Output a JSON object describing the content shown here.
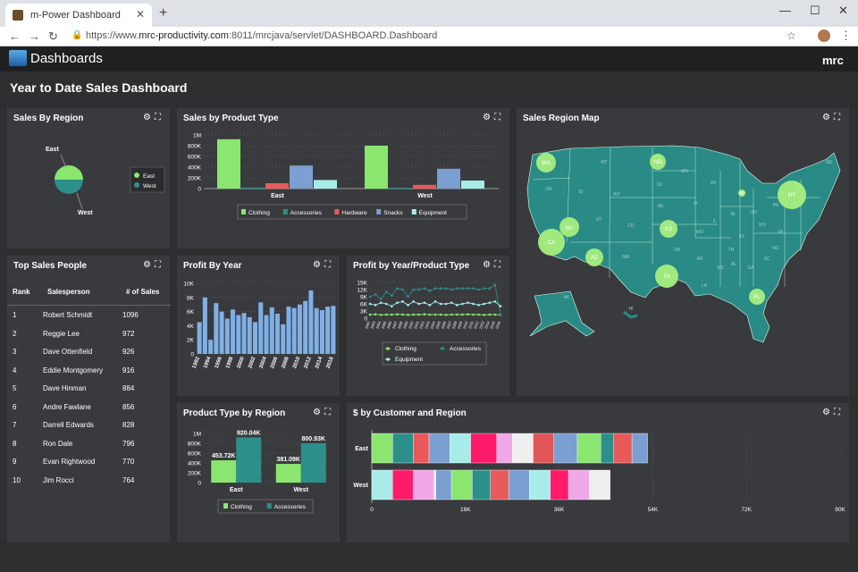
{
  "browser": {
    "tab_title": "m-Power Dashboard",
    "url_prefix": "https://www.",
    "url_host": "mrc-productivity.com",
    "url_path": ":8011/mrcjava/servlet/DASHBOARD.Dashboard"
  },
  "app": {
    "title": "Dashboards",
    "brand": "mrc",
    "page_title": "Year to Date Sales Dashboard"
  },
  "panels": {
    "region": "Sales By Region",
    "product_type": "Sales by Product Type",
    "map": "Sales Region Map",
    "top_people": "Top Sales People",
    "profit_year": "Profit By Year",
    "profit_year_product": "Profit by Year/Product Type",
    "type_region": "Product Type by Region",
    "customer_region": "$ by Customer and Region"
  },
  "top_people": {
    "headers": {
      "rank": "Rank",
      "person": "Salesperson",
      "sales": "# of Sales"
    },
    "rows": [
      {
        "rank": "1",
        "name": "Robert Schmidt",
        "sales": "1096"
      },
      {
        "rank": "2",
        "name": "Reggie Lee",
        "sales": "972"
      },
      {
        "rank": "3",
        "name": "Dave Ottenfield",
        "sales": "926"
      },
      {
        "rank": "4",
        "name": "Eddie Montgomery",
        "sales": "916"
      },
      {
        "rank": "5",
        "name": "Dave Hinman",
        "sales": "884"
      },
      {
        "rank": "6",
        "name": "Andre Fawlane",
        "sales": "856"
      },
      {
        "rank": "7",
        "name": "Darrell Edwards",
        "sales": "828"
      },
      {
        "rank": "8",
        "name": "Ron Dale",
        "sales": "796"
      },
      {
        "rank": "9",
        "name": "Evan Rightwood",
        "sales": "770"
      },
      {
        "rank": "10",
        "name": "Jim Rocci",
        "sales": "764"
      }
    ]
  },
  "map": {
    "labels": [
      "WA",
      "NV",
      "CA",
      "AZ",
      "ND",
      "KS",
      "TX",
      "NY",
      "FL",
      "MI",
      "OR",
      "UT",
      "CO",
      "NM",
      "NE",
      "SD",
      "WY",
      "MT",
      "ID",
      "OK",
      "IA",
      "IL",
      "MO",
      "AR",
      "LA",
      "MS",
      "AL",
      "GA",
      "TN",
      "KY",
      "IN",
      "OH",
      "PA",
      "WV",
      "VA",
      "NC",
      "SC",
      "WI",
      "MN",
      "ME",
      "AK",
      "HI"
    ],
    "bubble_color": "#a6ef7f",
    "land_color": "#2a8a85"
  },
  "colors": {
    "Clothing": "#8ae66f",
    "Accessories": "#2c8f8a",
    "Hardware": "#e85a5a",
    "Snacks": "#7b9fd0",
    "Equipment": "#a8ecea"
  },
  "chart_data": [
    {
      "type": "pie",
      "title": "Sales By Region",
      "labels": [
        "East",
        "West"
      ],
      "values": [
        50,
        50
      ],
      "legend": "right"
    },
    {
      "type": "bar",
      "title": "Sales by Product Type",
      "categories": [
        "East",
        "West"
      ],
      "series": [
        {
          "name": "Clothing",
          "values": [
            920000,
            800000
          ]
        },
        {
          "name": "Accessories",
          "values": [
            20000,
            15000
          ]
        },
        {
          "name": "Hardware",
          "values": [
            100000,
            70000
          ]
        },
        {
          "name": "Snacks",
          "values": [
            430000,
            370000
          ]
        },
        {
          "name": "Equipment",
          "values": [
            160000,
            150000
          ]
        }
      ],
      "yticks": [
        "0",
        "200K",
        "400K",
        "600K",
        "800K",
        "1M"
      ],
      "ylim": [
        0,
        1000000
      ],
      "legend": "bottom"
    },
    {
      "type": "bar",
      "title": "Profit By Year",
      "x": [
        "1992",
        "1993",
        "1994",
        "1995",
        "1996",
        "1997",
        "1998",
        "1999",
        "2000",
        "2001",
        "2002",
        "2003",
        "2004",
        "2005",
        "2006",
        "2007",
        "2008",
        "2009",
        "2010",
        "2011",
        "2012",
        "2013",
        "2014",
        "2015",
        "2016"
      ],
      "xticks": [
        "1992",
        "1994",
        "1996",
        "1998",
        "2000",
        "2002",
        "2004",
        "2006",
        "2008",
        "2010",
        "2012",
        "2014",
        "2016"
      ],
      "values": [
        4500,
        8000,
        2000,
        7200,
        6000,
        5000,
        6300,
        5500,
        5800,
        5200,
        4500,
        7300,
        5500,
        6600,
        5700,
        4200,
        6700,
        6500,
        7000,
        7500,
        9000,
        6500,
        6200,
        6700,
        6800
      ],
      "yticks": [
        "0",
        "2K",
        "4K",
        "6K",
        "8K",
        "10K"
      ],
      "ylim": [
        0,
        10000
      ]
    },
    {
      "type": "line",
      "title": "Profit by Year/Product Type",
      "x": [
        "1992",
        "1993",
        "1994",
        "1995",
        "1996",
        "1997",
        "1998",
        "1999",
        "2000",
        "2001",
        "2002",
        "2003",
        "2004",
        "2005",
        "2006",
        "2007",
        "2008",
        "2009",
        "2010",
        "2011",
        "2012",
        "2013",
        "2014",
        "2015",
        "2016"
      ],
      "series": [
        {
          "name": "Clothing",
          "values": [
            1500,
            1600,
            1400,
            1500,
            1500,
            1600,
            1500,
            1400,
            1500,
            1500,
            1600,
            1500,
            1500,
            1500,
            1400,
            1500,
            1500,
            1500,
            1600,
            1500,
            1500,
            1400,
            1500,
            1500,
            1400
          ]
        },
        {
          "name": "Accessories",
          "values": [
            9000,
            10000,
            8000,
            11000,
            9500,
            12500,
            12000,
            9000,
            12000,
            12000,
            12500,
            11500,
            12500,
            12500,
            12500,
            12000,
            12500,
            12500,
            12500,
            12500,
            12000,
            12500,
            12500,
            14000,
            1500
          ]
        },
        {
          "name": "Equipment",
          "values": [
            6000,
            5500,
            6500,
            6000,
            5000,
            6500,
            7000,
            5500,
            7000,
            6000,
            6500,
            5500,
            7000,
            6000,
            6000,
            6500,
            5500,
            6000,
            6500,
            6000,
            5500,
            6000,
            6500,
            7000,
            5000
          ]
        }
      ],
      "yticks": [
        "0",
        "3K",
        "6K",
        "9K",
        "12K",
        "15K"
      ],
      "ylim": [
        0,
        15000
      ],
      "legend": "bottom"
    },
    {
      "type": "bar",
      "title": "Product Type by Region",
      "categories": [
        "East",
        "West"
      ],
      "series": [
        {
          "name": "Clothing",
          "values": [
            453720,
            381090
          ],
          "labels": [
            "453.72K",
            "381.09K"
          ]
        },
        {
          "name": "Accessories",
          "values": [
            920040,
            800930
          ],
          "labels": [
            "920.04K",
            "800.93K"
          ]
        }
      ],
      "yticks": [
        "0",
        "200K",
        "400K",
        "600K",
        "800K",
        "1M"
      ],
      "ylim": [
        0,
        1000000
      ],
      "legend": "bottom"
    },
    {
      "type": "bar",
      "title": "$ by Customer and Region",
      "orientation": "horizontal-stacked",
      "categories": [
        "East",
        "West"
      ],
      "segments": [
        {
          "category": "East",
          "color": "#8ae66f",
          "value": 4000
        },
        {
          "category": "East",
          "color": "#2c8f8a",
          "value": 4000
        },
        {
          "category": "East",
          "color": "#e85a5a",
          "value": 3000
        },
        {
          "category": "East",
          "color": "#7b9fd0",
          "value": 4000
        },
        {
          "category": "East",
          "color": "#a8ecea",
          "value": 4000
        },
        {
          "category": "East",
          "color": "#ff1a6a",
          "value": 5000
        },
        {
          "category": "East",
          "color": "#f0a8e8",
          "value": 3000
        },
        {
          "category": "East",
          "color": "#eeeeee",
          "value": 4000
        },
        {
          "category": "East",
          "color": "#e05555",
          "value": 4000
        },
        {
          "category": "East",
          "color": "#7b9fd0",
          "value": 4500
        },
        {
          "category": "East",
          "color": "#8ae66f",
          "value": 4500
        },
        {
          "category": "East",
          "color": "#2c8f8a",
          "value": 2500
        },
        {
          "category": "East",
          "color": "#e85a5a",
          "value": 3500
        },
        {
          "category": "East",
          "color": "#7b9fd0",
          "value": 3000
        },
        {
          "category": "West",
          "color": "#a8ecea",
          "value": 4000
        },
        {
          "category": "West",
          "color": "#ff1a6a",
          "value": 4000
        },
        {
          "category": "West",
          "color": "#f0a8e8",
          "value": 4000
        },
        {
          "category": "West",
          "color": "#eeeeee",
          "value": 300
        },
        {
          "category": "West",
          "color": "#7b9fd0",
          "value": 3000
        },
        {
          "category": "West",
          "color": "#8ae66f",
          "value": 4000
        },
        {
          "category": "West",
          "color": "#2c8f8a",
          "value": 3500
        },
        {
          "category": "West",
          "color": "#e85a5a",
          "value": 3500
        },
        {
          "category": "West",
          "color": "#7b9fd0",
          "value": 4000
        },
        {
          "category": "West",
          "color": "#a8ecea",
          "value": 4000
        },
        {
          "category": "West",
          "color": "#ff1a6a",
          "value": 3500
        },
        {
          "category": "West",
          "color": "#f0a8e8",
          "value": 4000
        },
        {
          "category": "West",
          "color": "#eeeeee",
          "value": 4000
        }
      ],
      "xticks": [
        "0",
        "18K",
        "36K",
        "54K",
        "72K",
        "90K"
      ],
      "xlim": [
        0,
        90000
      ]
    }
  ]
}
